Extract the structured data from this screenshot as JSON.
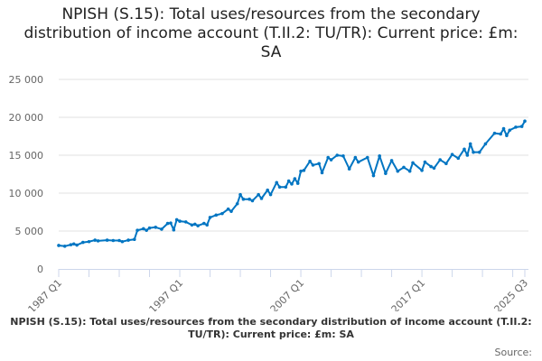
{
  "chart_data": {
    "type": "line",
    "title": "NPISH (S.15): Total uses/resources from the secondary distribution of income account (T.II.2: TU/TR): Current price: £m: SA",
    "xlabel": "",
    "ylabel": "",
    "ylim": [
      0,
      25000
    ],
    "yticks": [
      "0",
      "5 000",
      "10 000",
      "15 000",
      "20 000",
      "25 000"
    ],
    "ytick_values": [
      0,
      5000,
      10000,
      15000,
      20000,
      25000
    ],
    "xrange": [
      "1987 Q1",
      "2025 Q3"
    ],
    "xtick_labels": [
      "1987 Q1",
      "1997 Q1",
      "2007 Q1",
      "2017 Q1",
      "2025 Q3"
    ],
    "grid": true,
    "legend_position": "bottom",
    "series": [
      {
        "name": "NPISH (S.15): Total uses/resources from the secondary distribution of income account (T.II.2: TU/TR): Current price: £m: SA",
        "color": "#0075c2",
        "points": [
          [
            "1987 Q1",
            3100
          ],
          [
            "1987 Q3",
            3000
          ],
          [
            "1988 Q1",
            3200
          ],
          [
            "1988 Q2",
            3300
          ],
          [
            "1988 Q3",
            3150
          ],
          [
            "1989 Q1",
            3500
          ],
          [
            "1989 Q3",
            3600
          ],
          [
            "1990 Q1",
            3800
          ],
          [
            "1990 Q2",
            3700
          ],
          [
            "1991 Q1",
            3800
          ],
          [
            "1991 Q3",
            3750
          ],
          [
            "1992 Q1",
            3750
          ],
          [
            "1992 Q2",
            3600
          ],
          [
            "1992 Q4",
            3800
          ],
          [
            "1993 Q2",
            3900
          ],
          [
            "1993 Q3",
            5100
          ],
          [
            "1994 Q1",
            5300
          ],
          [
            "1994 Q2",
            5100
          ],
          [
            "1994 Q3",
            5400
          ],
          [
            "1995 Q1",
            5500
          ],
          [
            "1995 Q3",
            5250
          ],
          [
            "1996 Q1",
            6000
          ],
          [
            "1996 Q2",
            6050
          ],
          [
            "1996 Q3",
            5150
          ],
          [
            "1996 Q4",
            6500
          ],
          [
            "1997 Q1",
            6300
          ],
          [
            "1997 Q3",
            6200
          ],
          [
            "1998 Q1",
            5800
          ],
          [
            "1998 Q2",
            5900
          ],
          [
            "1998 Q3",
            5700
          ],
          [
            "1999 Q1",
            6000
          ],
          [
            "1999 Q2",
            5800
          ],
          [
            "1999 Q3",
            6800
          ],
          [
            "2000 Q1",
            7100
          ],
          [
            "2000 Q3",
            7300
          ],
          [
            "2001 Q1",
            7900
          ],
          [
            "2001 Q2",
            7600
          ],
          [
            "2001 Q4",
            8600
          ],
          [
            "2002 Q1",
            9800
          ],
          [
            "2002 Q2",
            9200
          ],
          [
            "2002 Q4",
            9200
          ],
          [
            "2003 Q1",
            9000
          ],
          [
            "2003 Q3",
            9800
          ],
          [
            "2003 Q4",
            9300
          ],
          [
            "2004 Q2",
            10400
          ],
          [
            "2004 Q3",
            9800
          ],
          [
            "2005 Q1",
            11400
          ],
          [
            "2005 Q2",
            10800
          ],
          [
            "2005 Q4",
            10800
          ],
          [
            "2006 Q1",
            11600
          ],
          [
            "2006 Q2",
            11200
          ],
          [
            "2006 Q3",
            11900
          ],
          [
            "2006 Q4",
            11300
          ],
          [
            "2007 Q1",
            12900
          ],
          [
            "2007 Q2",
            13000
          ],
          [
            "2007 Q4",
            14200
          ],
          [
            "2008 Q1",
            13700
          ],
          [
            "2008 Q3",
            13900
          ],
          [
            "2008 Q4",
            12700
          ],
          [
            "2009 Q2",
            14700
          ],
          [
            "2009 Q3",
            14400
          ],
          [
            "2010 Q1",
            15000
          ],
          [
            "2010 Q3",
            14900
          ],
          [
            "2011 Q1",
            13200
          ],
          [
            "2011 Q3",
            14700
          ],
          [
            "2011 Q4",
            14100
          ],
          [
            "2012 Q3",
            14700
          ],
          [
            "2013 Q1",
            12300
          ],
          [
            "2013 Q3",
            14900
          ],
          [
            "2014 Q1",
            12600
          ],
          [
            "2014 Q3",
            14300
          ],
          [
            "2015 Q1",
            12900
          ],
          [
            "2015 Q3",
            13400
          ],
          [
            "2016 Q1",
            12900
          ],
          [
            "2016 Q2",
            14000
          ],
          [
            "2017 Q1",
            13000
          ],
          [
            "2017 Q2",
            14100
          ],
          [
            "2017 Q4",
            13500
          ],
          [
            "2018 Q1",
            13300
          ],
          [
            "2018 Q3",
            14400
          ],
          [
            "2019 Q1",
            13900
          ],
          [
            "2019 Q3",
            15100
          ],
          [
            "2020 Q1",
            14600
          ],
          [
            "2020 Q3",
            15800
          ],
          [
            "2020 Q4",
            15000
          ],
          [
            "2021 Q1",
            16500
          ],
          [
            "2021 Q2",
            15400
          ],
          [
            "2021 Q4",
            15400
          ],
          [
            "2022 Q2",
            16500
          ],
          [
            "2023 Q1",
            17900
          ],
          [
            "2023 Q3",
            17800
          ],
          [
            "2023 Q4",
            18500
          ],
          [
            "2024 Q1",
            17600
          ],
          [
            "2024 Q2",
            18300
          ],
          [
            "2024 Q4",
            18700
          ],
          [
            "2025 Q2",
            18800
          ],
          [
            "2025 Q3",
            19500
          ]
        ]
      }
    ],
    "credits": "Source:"
  }
}
